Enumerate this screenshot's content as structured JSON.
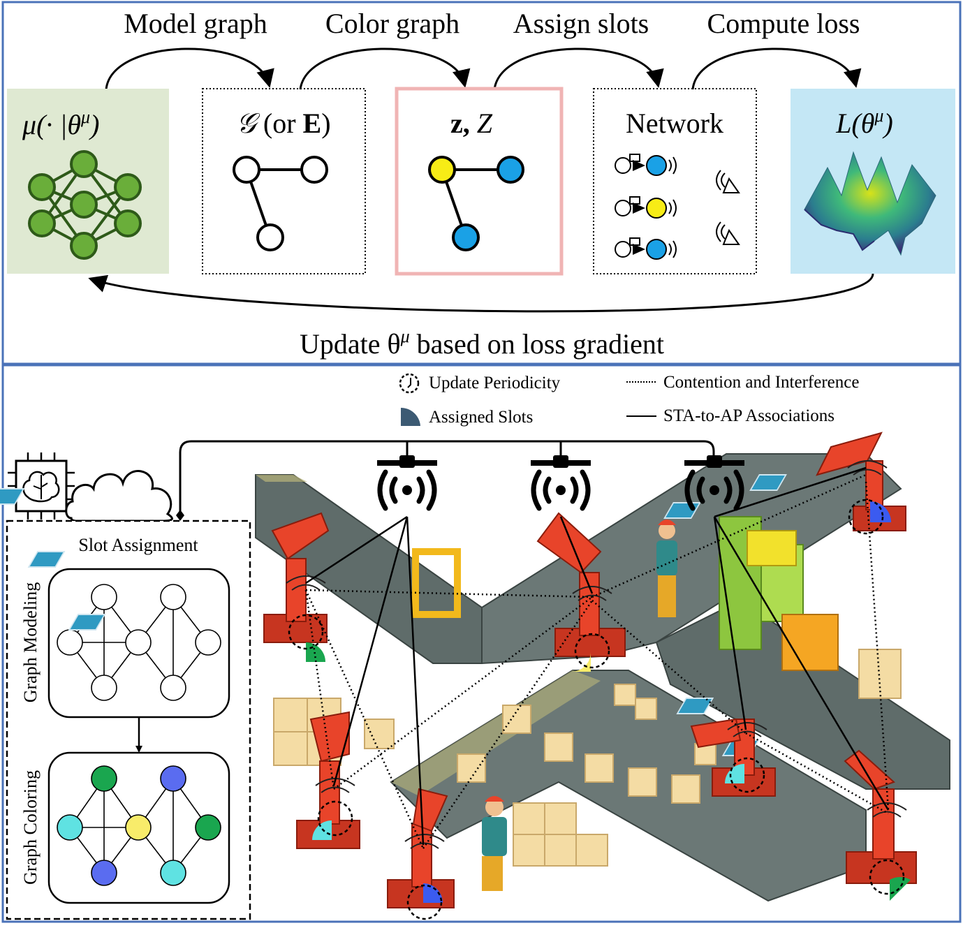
{
  "top_panel": {
    "steps": [
      "Model graph",
      "Color graph",
      "Assign slots",
      "Compute loss"
    ],
    "boxes": {
      "policy": "μ(· |θ",
      "policy_sup": "μ",
      "policy_close": ")",
      "graph_script": "𝒢",
      "graph_rest": " (or ",
      "graph_bold": "E",
      "graph_close": ")",
      "coloring_bold": "z,",
      "coloring_italic": " Z",
      "network": "Network",
      "loss": "L(θ",
      "loss_sup": "μ",
      "loss_close": ")"
    },
    "update_label": "Update θ",
    "update_sup": "μ",
    "update_rest": " based on loss gradient"
  },
  "legend": {
    "update_periodicity": "Update Periodicity",
    "assigned_slots": "Assigned Slots",
    "contention": "Contention and Interference",
    "association": "STA-to-AP Associations"
  },
  "side_panel": {
    "title": "Slot Assignment",
    "graph_modeling": "Graph Modeling",
    "graph_coloring": "Graph Coloring"
  },
  "colors": {
    "frame": "#4a72b8",
    "policy_bg": "#dfe9d2",
    "node_green": "#6aae3a",
    "coloring_border": "#f0b4b4",
    "loss_bg": "#c4e7f5",
    "yellow": "#f7ec16",
    "blue": "#1aa1e6",
    "coloring_green": "#1aa64f",
    "coloring_blue": "#5a6cf0",
    "coloring_cyan": "#5fe2e2",
    "coloring_yellow": "#f8ec6a",
    "robot_red": "#e8442a",
    "belt": "#5f6c6a",
    "box_tan": "#f4dca4"
  }
}
